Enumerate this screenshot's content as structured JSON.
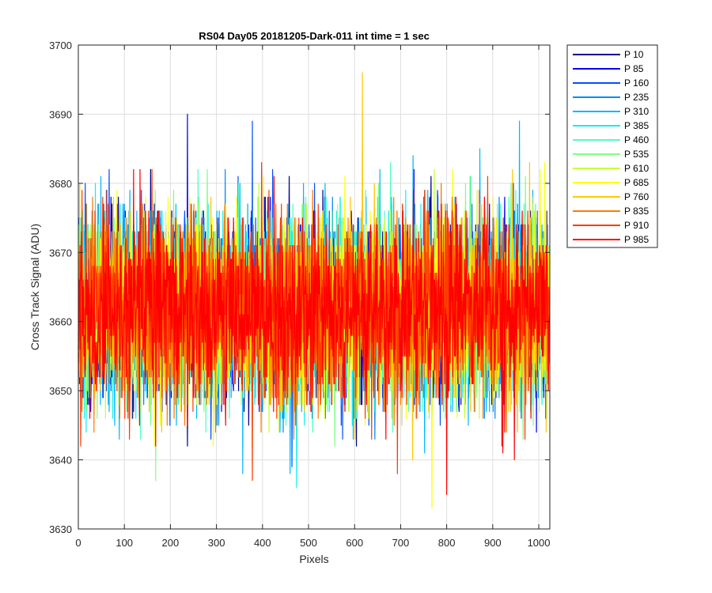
{
  "chart_data": {
    "type": "line",
    "title": "RS04 Day05 20181205-Dark-011 int time = 1 sec",
    "xlabel": "Pixels",
    "ylabel": "Cross Track Signal (ADU)",
    "xlim": [
      0,
      1024
    ],
    "ylim": [
      3630,
      3700
    ],
    "xticks": [
      0,
      100,
      200,
      300,
      400,
      500,
      600,
      700,
      800,
      900,
      1000
    ],
    "yticks": [
      3630,
      3640,
      3650,
      3660,
      3670,
      3680,
      3690,
      3700
    ],
    "grid": true,
    "legend_position": "outside-right",
    "noise_model": {
      "n_points": 1024,
      "mean": 3662,
      "std": 6.5
    },
    "series": [
      {
        "name": "P 10",
        "color": "#00008f"
      },
      {
        "name": "P 85",
        "color": "#0000ea"
      },
      {
        "name": "P 160",
        "color": "#0050ff"
      },
      {
        "name": "P 235",
        "color": "#008aff"
      },
      {
        "name": "P 310",
        "color": "#00b8ff"
      },
      {
        "name": "P 385",
        "color": "#0ff0ef"
      },
      {
        "name": "P 460",
        "color": "#4dffc2"
      },
      {
        "name": "P 535",
        "color": "#7dff82"
      },
      {
        "name": "P 610",
        "color": "#c5ff3a"
      },
      {
        "name": "P 685",
        "color": "#ffff00"
      },
      {
        "name": "P 760",
        "color": "#ffc800"
      },
      {
        "name": "P 835",
        "color": "#ff7a00"
      },
      {
        "name": "P 910",
        "color": "#ff3a00"
      },
      {
        "name": "P 985",
        "color": "#ff0000"
      }
    ],
    "highlights": [
      {
        "series": "P 760",
        "x": 617,
        "y": 3696
      },
      {
        "series": "P 685",
        "x": 768,
        "y": 3633
      },
      {
        "series": "P 85",
        "x": 237,
        "y": 3690
      },
      {
        "series": "P 160",
        "x": 378,
        "y": 3689
      },
      {
        "series": "P 310",
        "x": 958,
        "y": 3689
      },
      {
        "series": "P 985",
        "x": 800,
        "y": 3635
      },
      {
        "series": "P 910",
        "x": 378,
        "y": 3637
      },
      {
        "series": "P 535",
        "x": 168,
        "y": 3637
      },
      {
        "series": "P 385",
        "x": 474,
        "y": 3636
      }
    ]
  }
}
